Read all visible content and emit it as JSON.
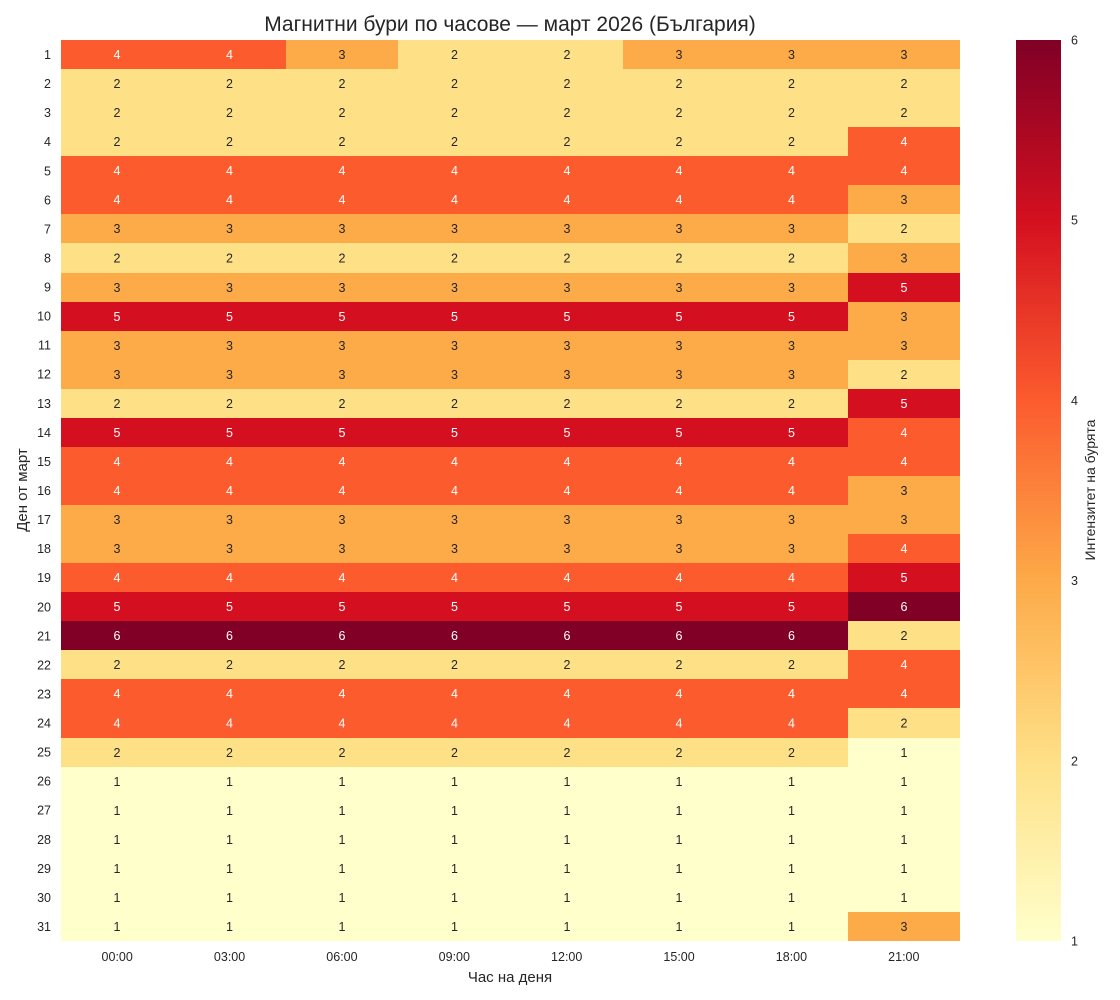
{
  "chart_data": {
    "type": "heatmap",
    "title": "Магнитни бури по часове — март 2026 (България)",
    "xlabel": "Час на деня",
    "ylabel": "Ден от март",
    "x": [
      "00:00",
      "03:00",
      "06:00",
      "09:00",
      "12:00",
      "15:00",
      "18:00",
      "21:00"
    ],
    "y": [
      "1",
      "2",
      "3",
      "4",
      "5",
      "6",
      "7",
      "8",
      "9",
      "10",
      "11",
      "12",
      "13",
      "14",
      "15",
      "16",
      "17",
      "18",
      "19",
      "20",
      "21",
      "22",
      "23",
      "24",
      "25",
      "26",
      "27",
      "28",
      "29",
      "30",
      "31"
    ],
    "values": [
      [
        4,
        4,
        3,
        2,
        2,
        3,
        3,
        3
      ],
      [
        2,
        2,
        2,
        2,
        2,
        2,
        2,
        2
      ],
      [
        2,
        2,
        2,
        2,
        2,
        2,
        2,
        2
      ],
      [
        2,
        2,
        2,
        2,
        2,
        2,
        2,
        4
      ],
      [
        4,
        4,
        4,
        4,
        4,
        4,
        4,
        4
      ],
      [
        4,
        4,
        4,
        4,
        4,
        4,
        4,
        3
      ],
      [
        3,
        3,
        3,
        3,
        3,
        3,
        3,
        2
      ],
      [
        2,
        2,
        2,
        2,
        2,
        2,
        2,
        3
      ],
      [
        3,
        3,
        3,
        3,
        3,
        3,
        3,
        5
      ],
      [
        5,
        5,
        5,
        5,
        5,
        5,
        5,
        3
      ],
      [
        3,
        3,
        3,
        3,
        3,
        3,
        3,
        3
      ],
      [
        3,
        3,
        3,
        3,
        3,
        3,
        3,
        2
      ],
      [
        2,
        2,
        2,
        2,
        2,
        2,
        2,
        5
      ],
      [
        5,
        5,
        5,
        5,
        5,
        5,
        5,
        4
      ],
      [
        4,
        4,
        4,
        4,
        4,
        4,
        4,
        4
      ],
      [
        4,
        4,
        4,
        4,
        4,
        4,
        4,
        3
      ],
      [
        3,
        3,
        3,
        3,
        3,
        3,
        3,
        3
      ],
      [
        3,
        3,
        3,
        3,
        3,
        3,
        3,
        4
      ],
      [
        4,
        4,
        4,
        4,
        4,
        4,
        4,
        5
      ],
      [
        5,
        5,
        5,
        5,
        5,
        5,
        5,
        6
      ],
      [
        6,
        6,
        6,
        6,
        6,
        6,
        6,
        2
      ],
      [
        2,
        2,
        2,
        2,
        2,
        2,
        2,
        4
      ],
      [
        4,
        4,
        4,
        4,
        4,
        4,
        4,
        4
      ],
      [
        4,
        4,
        4,
        4,
        4,
        4,
        4,
        2
      ],
      [
        2,
        2,
        2,
        2,
        2,
        2,
        2,
        1
      ],
      [
        1,
        1,
        1,
        1,
        1,
        1,
        1,
        1
      ],
      [
        1,
        1,
        1,
        1,
        1,
        1,
        1,
        1
      ],
      [
        1,
        1,
        1,
        1,
        1,
        1,
        1,
        1
      ],
      [
        1,
        1,
        1,
        1,
        1,
        1,
        1,
        1
      ],
      [
        1,
        1,
        1,
        1,
        1,
        1,
        1,
        1
      ],
      [
        1,
        1,
        1,
        1,
        1,
        1,
        1,
        3
      ]
    ],
    "annotations": true,
    "colorscale": "YlOrRd",
    "colorbar": {
      "label": "Интензитет на бурята",
      "range": [
        1,
        6
      ],
      "ticks": [
        "1",
        "2",
        "3",
        "4",
        "5",
        "6"
      ]
    },
    "value_colors": {
      "1": "#ffffcc",
      "2": "#fee087",
      "3": "#fdaa48",
      "4": "#fc5b2e",
      "5": "#d41020",
      "6": "#800026"
    },
    "gradient_stops": [
      "#ffffcc",
      "#fee087",
      "#fdaa48",
      "#fc5b2e",
      "#d41020",
      "#800026"
    ],
    "annotation_text_colors": {
      "dark": "#262626",
      "light": "#ffffff"
    }
  }
}
